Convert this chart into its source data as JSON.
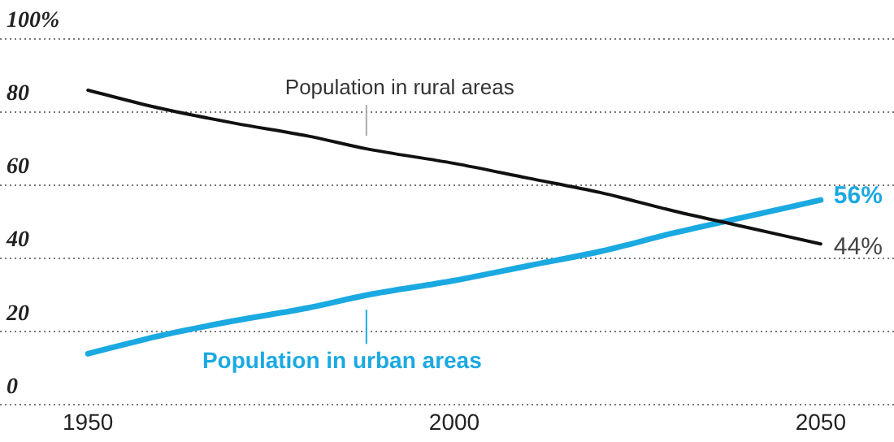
{
  "chart_data": {
    "type": "line",
    "x": [
      1950,
      1960,
      1970,
      1980,
      1988,
      2000,
      2010,
      2020,
      2030,
      2040,
      2050
    ],
    "series": [
      {
        "name": "Population in rural areas",
        "color": "#111111",
        "values": [
          86,
          81,
          77,
          73.5,
          70,
          66,
          62,
          58,
          53,
          48.5,
          44
        ],
        "value_labels": [
          null,
          null,
          null,
          null,
          null,
          null,
          null,
          null,
          null,
          null,
          "44%"
        ]
      },
      {
        "name": "Population in urban areas",
        "color": "#1ba9e1",
        "values": [
          14,
          19,
          23,
          26.5,
          30,
          34,
          38,
          42,
          47,
          51.5,
          56
        ],
        "value_labels": [
          null,
          null,
          null,
          null,
          null,
          null,
          null,
          null,
          null,
          null,
          "56%"
        ]
      }
    ],
    "xlim": [
      1938,
      2060
    ],
    "xticks": [
      1950,
      2000,
      2050
    ],
    "ylim": [
      0,
      100
    ],
    "yticks": [
      {
        "value": 0,
        "label": "0"
      },
      {
        "value": 20,
        "label": "20"
      },
      {
        "value": 40,
        "label": "40"
      },
      {
        "value": 60,
        "label": "60"
      },
      {
        "value": 80,
        "label": "80"
      },
      {
        "value": 100,
        "label": "100%"
      }
    ],
    "grid": "y",
    "legend": "bottom",
    "marker": "none",
    "line_style": "solid"
  }
}
